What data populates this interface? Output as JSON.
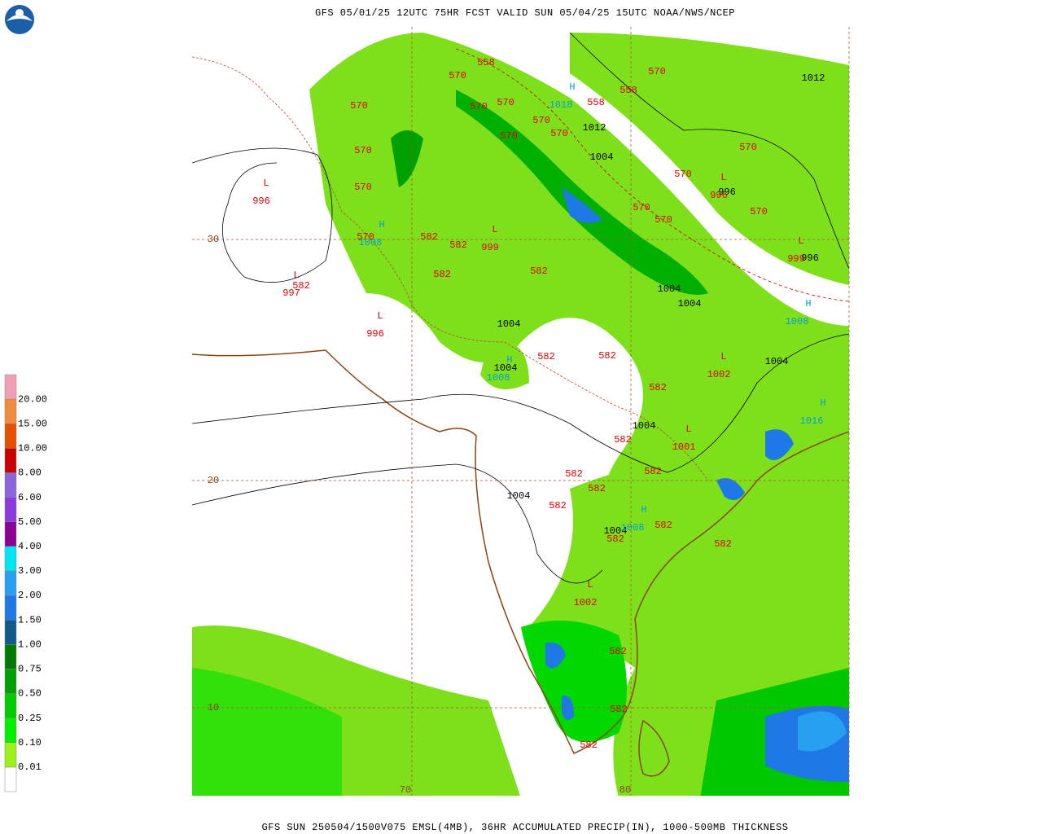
{
  "header": {
    "title": "GFS 05/01/25 12UTC 75HR FCST VALID SUN 05/04/25 15UTC NOAA/NWS/NCEP"
  },
  "footer": {
    "caption": "GFS SUN 250504/1500V075 EMSL(4MB), 36HR ACCUMULATED PRECIP(IN), 1000-500MB THICKNESS"
  },
  "legend": {
    "labels": [
      "0.01",
      "0.10",
      "0.25",
      "0.50",
      "0.75",
      "1.00",
      "1.50",
      "2.00",
      "3.00",
      "4.00",
      "5.00",
      "6.00",
      "8.00",
      "10.00",
      "15.00",
      "20.00"
    ],
    "colors": [
      "#ffffff",
      "#9ef01a",
      "#00f000",
      "#00cc00",
      "#00a000",
      "#007a00",
      "#105a8c",
      "#1e78e6",
      "#28a0f0",
      "#00e6f0",
      "#8c0096",
      "#8c3cdc",
      "#8c64dc",
      "#c80000",
      "#e65000",
      "#f08c3c",
      "#f0a0b4"
    ]
  },
  "grid_labels": {
    "lat": [
      "30",
      "20",
      "10"
    ],
    "lon": [
      "70",
      "80"
    ]
  },
  "map_labels": {
    "thickness": [
      558,
      570,
      570,
      570,
      570,
      558,
      558,
      570,
      570,
      570,
      570,
      570,
      570,
      570,
      570,
      570,
      570,
      570,
      570,
      582,
      582,
      582,
      582,
      582,
      582,
      582,
      582,
      582,
      582,
      582,
      582,
      582,
      582,
      582,
      582,
      582,
      582,
      582
    ],
    "pressure": [
      1012,
      1012,
      1004,
      996,
      996,
      1004,
      1004,
      1004,
      1004,
      1004,
      1004,
      1004,
      1004
    ],
    "lows": {
      "symbol": "L",
      "values": [
        996,
        997,
        996,
        999,
        996,
        999,
        1002,
        1001,
        1002
      ]
    },
    "highs": {
      "symbol": "H",
      "values": [
        1018,
        1008,
        1008,
        1008,
        1016,
        1008
      ]
    }
  }
}
